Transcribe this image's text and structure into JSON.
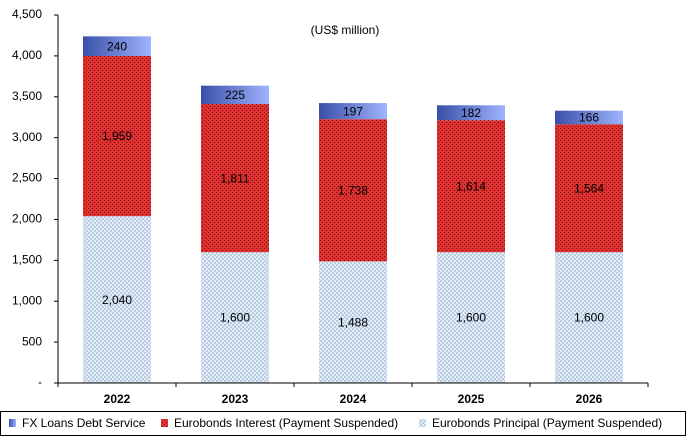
{
  "chart_data": {
    "type": "stacked_bar",
    "subtitle": "(US$ million)",
    "categories": [
      "2022",
      "2023",
      "2024",
      "2025",
      "2026"
    ],
    "series": [
      {
        "name": "Eurobonds Principal (Payment Suspended)",
        "color": "#b8cce4",
        "values": [
          2040,
          1600,
          1488,
          1600,
          1600
        ],
        "value_labels": [
          "2,040",
          "1,600",
          "1,488",
          "1,600",
          "1,600"
        ]
      },
      {
        "name": "Eurobonds Interest (Payment Suspended)",
        "color": "#e03030",
        "values": [
          1959,
          1811,
          1738,
          1614,
          1564
        ],
        "value_labels": [
          "1,959",
          "1,811",
          "1,738",
          "1,614",
          "1,564"
        ]
      },
      {
        "name": "FX Loans Debt Service",
        "color": "#3a4fa8",
        "values": [
          240,
          225,
          197,
          182,
          166
        ]
      }
    ],
    "legend_order": [
      2,
      1,
      0
    ],
    "ylim": [
      0,
      4500
    ],
    "yticks": [
      {
        "value": 0,
        "label": "-"
      },
      500,
      {
        "value": 1000,
        "label": "1,000"
      },
      {
        "value": 1500,
        "label": "1,500"
      },
      {
        "value": 2000,
        "label": "2,000"
      },
      {
        "value": 2500,
        "label": "2,500"
      },
      {
        "value": 3000,
        "label": "3,000"
      },
      {
        "value": 3500,
        "label": "3,500"
      },
      {
        "value": 4000,
        "label": "4,000"
      },
      {
        "value": 4500,
        "label": "4,500"
      }
    ],
    "legend": "bottom"
  }
}
